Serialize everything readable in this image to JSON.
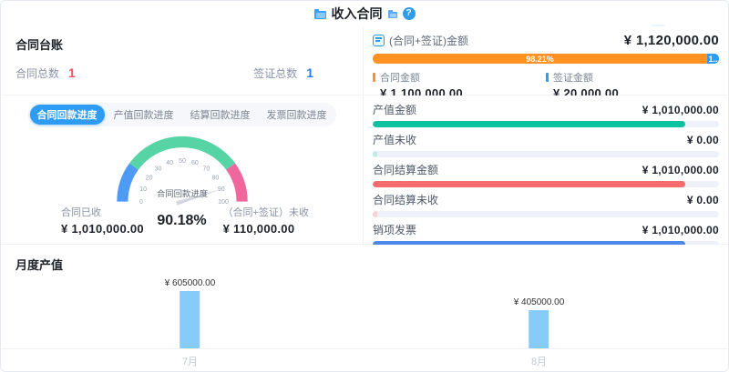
{
  "header": {
    "title": "收入合同",
    "help_icon": "?"
  },
  "ledger": {
    "title": "合同台账",
    "stats": [
      {
        "label": "合同总数",
        "value": "1",
        "color": "#f5515f"
      },
      {
        "label": "签证总数",
        "value": "1",
        "color": "#2080f0"
      }
    ]
  },
  "summary": {
    "label": "(合同+签证)金额",
    "total": "¥ 1,120,000.00",
    "bar_segments": [
      {
        "pct": 98.21,
        "label": "98.21%",
        "color": "#ff9222"
      },
      {
        "pct": 1.79,
        "label": "1..",
        "color": "#2e9cf5"
      }
    ],
    "legend": [
      {
        "label": "合同金额",
        "value": "¥ 1,100,000.00",
        "color": "#ff9222"
      },
      {
        "label": "签证金额",
        "value": "¥ 20,000.00",
        "color": "#2e9cf5"
      }
    ]
  },
  "progress_section": {
    "tabs": [
      {
        "label": "合同回款进度",
        "active": true
      },
      {
        "label": "产值回款进度",
        "active": false
      },
      {
        "label": "结算回款进度",
        "active": false
      },
      {
        "label": "发票回款进度",
        "active": false
      }
    ],
    "stats": [
      {
        "label": "合同已收",
        "value": "¥ 1,010,000.00"
      },
      {
        "label": "（合同+签证）未收",
        "value": "¥ 110,000.00"
      }
    ]
  },
  "metrics": [
    {
      "label": "产值金额",
      "value": "¥ 1,010,000.00",
      "pct": 90.2,
      "color": "#0cc2a0"
    },
    {
      "label": "产值未收",
      "value": "¥ 0.00",
      "pct": 1.2,
      "color": "#bdece3"
    },
    {
      "label": "合同结算金额",
      "value": "¥ 1,010,000.00",
      "pct": 90.2,
      "color": "#f56c6c"
    },
    {
      "label": "合同结算未收",
      "value": "¥ 0.00",
      "pct": 1.2,
      "color": "#fad3d3"
    },
    {
      "label": "销项发票",
      "value": "¥ 1,010,000.00",
      "pct": 90.2,
      "color": "#4d88e8"
    },
    {
      "label": "发票未收",
      "value": "¥ 0.00",
      "pct": 1.2,
      "color": "#ccd9f3"
    }
  ],
  "chart_data": [
    {
      "type": "gauge",
      "title": "合同回款进度",
      "value": 90.18,
      "value_label": "90.18%",
      "min": 0,
      "max": 100,
      "ticks": [
        0,
        10,
        20,
        30,
        40,
        50,
        60,
        70,
        80,
        90,
        100
      ],
      "segments": [
        {
          "from": 0,
          "to": 20,
          "color": "#4d9bf5"
        },
        {
          "from": 20,
          "to": 80,
          "color": "#57d4a5"
        },
        {
          "from": 80,
          "to": 100,
          "color": "#f0679d"
        }
      ],
      "needle_color": "#d3d7de"
    },
    {
      "type": "bar",
      "title": "月度产值",
      "categories": [
        "7月",
        "8月"
      ],
      "values": [
        605000,
        405000
      ],
      "labels": [
        "¥ 605000.00",
        "¥ 405000.00"
      ],
      "bar_color": "#87ccf8",
      "ylim": [
        0,
        650000
      ],
      "grid": false,
      "legend_position": "none"
    }
  ]
}
